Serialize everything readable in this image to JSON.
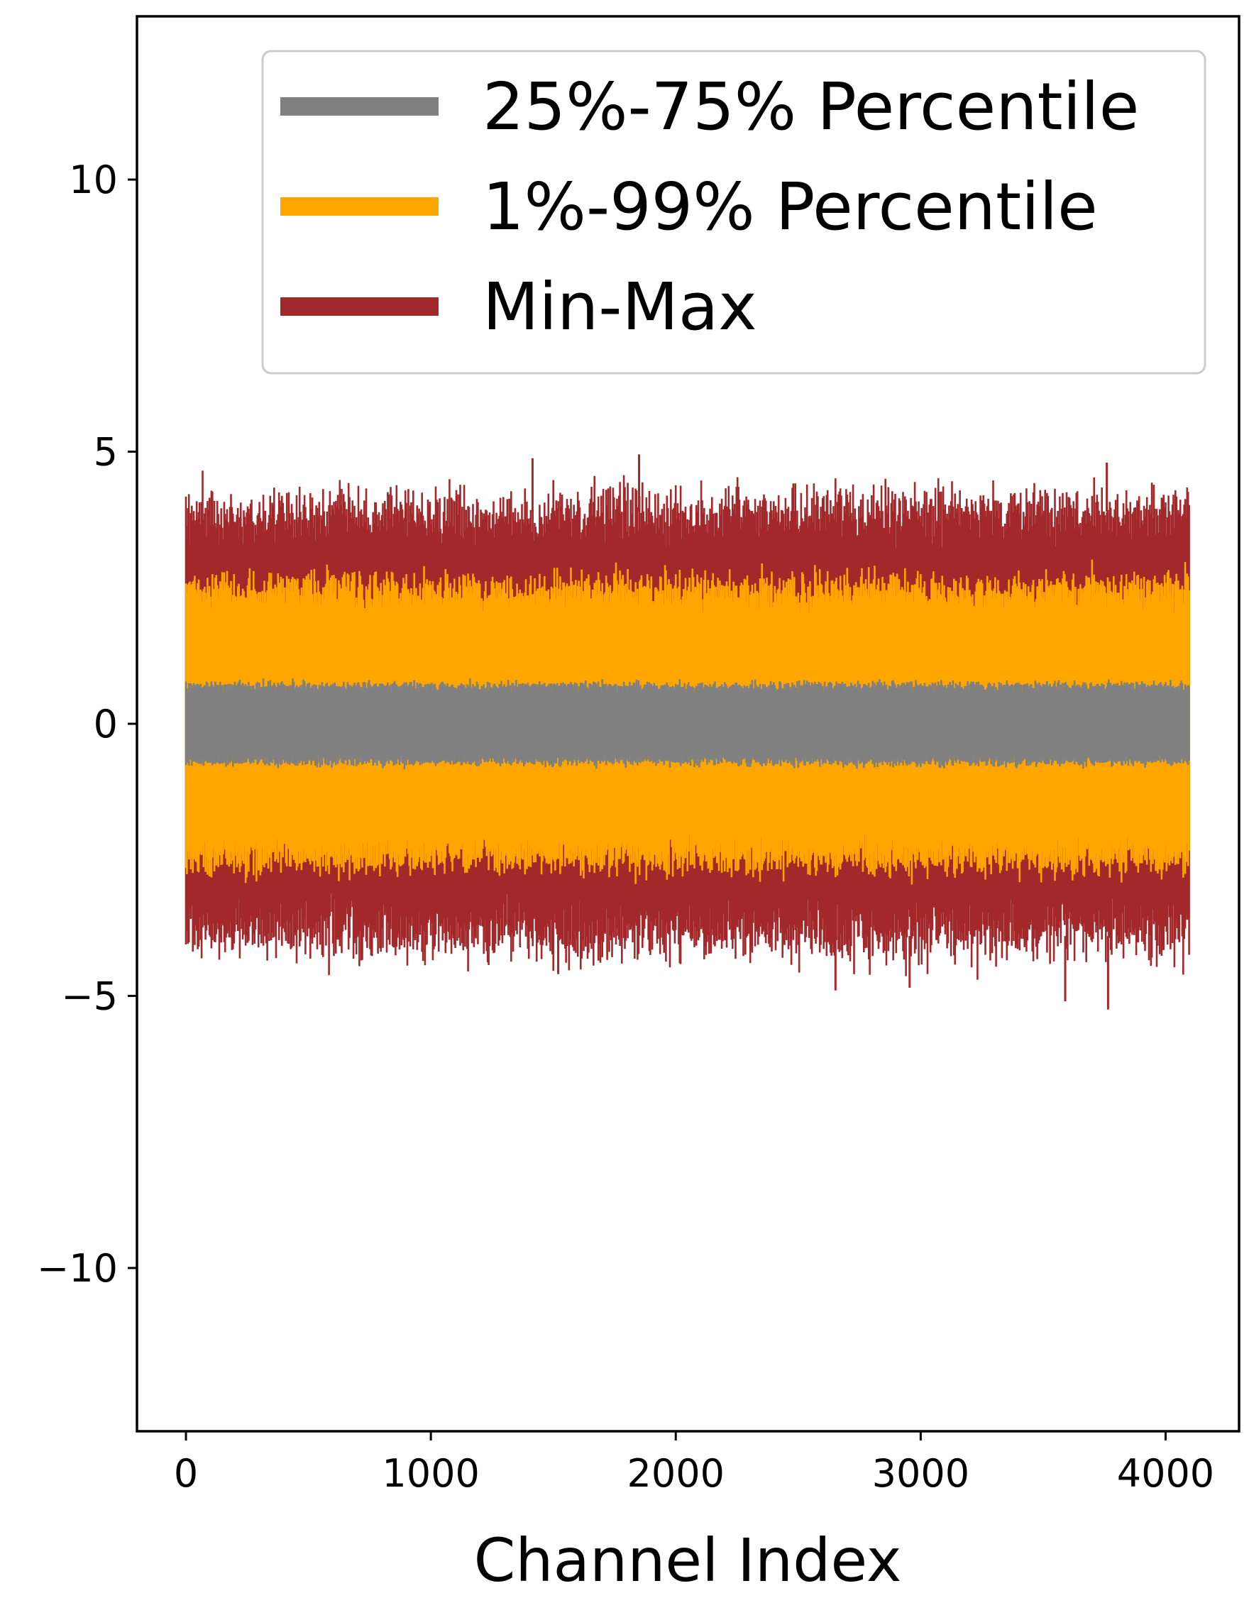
{
  "chart_data": {
    "type": "area",
    "title": "",
    "xlabel": "Channel Index",
    "ylabel": "",
    "xlim": [
      -200,
      4300
    ],
    "ylim": [
      -13,
      13
    ],
    "x_ticks": [
      0,
      1000,
      2000,
      3000,
      4000
    ],
    "x_tick_labels": [
      "0",
      "1000",
      "2000",
      "3000",
      "4000"
    ],
    "y_ticks": [
      10,
      5,
      0,
      -5,
      -10
    ],
    "y_tick_labels": [
      "10",
      "5",
      "0",
      "−5",
      "−10"
    ],
    "grid": false,
    "legend_position": "top-right",
    "channel_range": [
      0,
      4096
    ],
    "series": [
      {
        "name": "Min-Max",
        "color": "#a2282b",
        "typical_range": [
          -3.9,
          3.9
        ],
        "extreme_max": 4.95,
        "extreme_min": -5.25,
        "spikes": [
          {
            "x": 1850,
            "y": 4.95
          },
          {
            "x": 1415,
            "y": 4.88
          },
          {
            "x": 3760,
            "y": 4.8
          },
          {
            "x": 2652,
            "y": -4.9
          },
          {
            "x": 3590,
            "y": -5.1
          },
          {
            "x": 3765,
            "y": -5.25
          },
          {
            "x": 1520,
            "y": -4.6
          },
          {
            "x": 2955,
            "y": -4.85
          }
        ]
      },
      {
        "name": "1%-99% Percentile",
        "color": "#ffa500",
        "typical_range": [
          -2.5,
          2.5
        ]
      },
      {
        "name": "25%-75% Percentile",
        "color": "#808080",
        "typical_range": [
          -0.7,
          0.7
        ]
      }
    ]
  },
  "legend": {
    "items": [
      {
        "label": "25%-75% Percentile",
        "color": "#808080"
      },
      {
        "label": "1%-99% Percentile",
        "color": "#ffa500"
      },
      {
        "label": "Min-Max",
        "color": "#a2282b"
      }
    ]
  }
}
